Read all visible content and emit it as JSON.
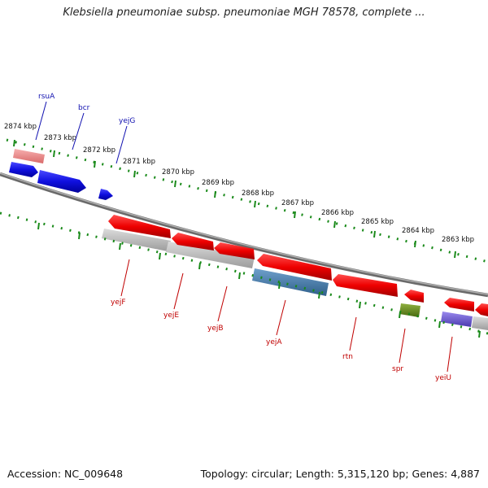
{
  "title": "Klebsiella pneumoniae subsp. pneumoniae MGH 78578, complete ...",
  "footer": {
    "accession": "Accession: NC_009648",
    "meta": "Topology: circular; Length: 5,315,120 bp; Genes: 4,887"
  },
  "colors": {
    "forward_gene": "#1010e0",
    "reverse_gene": "#ee0000",
    "pseudogene": "#f08080",
    "rna_gray": "#b8b8b8",
    "steelblue": "#4682b4",
    "green": "#6b8e23",
    "purple": "#6a5acd",
    "tick": "#1a8a1a",
    "backbone": "#888888"
  },
  "kbp_labels": [
    "2874 kbp",
    "2873 kbp",
    "2872 kbp",
    "2871 kbp",
    "2870 kbp",
    "2869 kbp",
    "2868 kbp",
    "2867 kbp",
    "2866 kbp",
    "2865 kbp",
    "2864 kbp",
    "2863 kbp"
  ],
  "gene_labels_forward": [
    "rsuA",
    "bcr",
    "yejG"
  ],
  "gene_labels_reverse": [
    "yejF",
    "yejE",
    "yejB",
    "yejA",
    "rtn",
    "spr",
    "yeiU"
  ]
}
